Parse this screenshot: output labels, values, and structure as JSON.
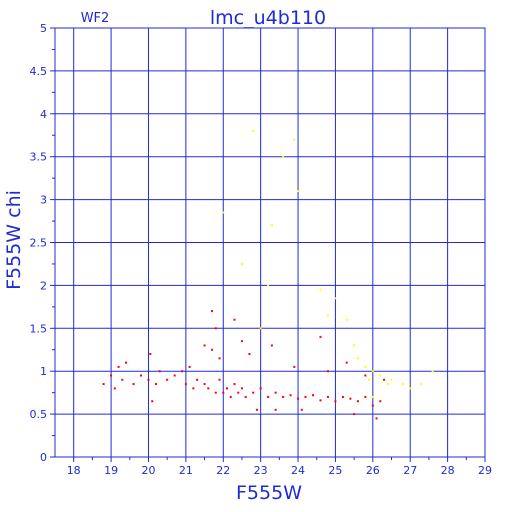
{
  "chart_data": {
    "type": "scatter",
    "title": "lmc_u4b110",
    "subtitle": "WF2",
    "xlabel": "F555W",
    "ylabel": "F555W  chi",
    "xlim": [
      17.5,
      29
    ],
    "ylim": [
      0,
      5
    ],
    "x_ticks": [
      "18",
      "19",
      "20",
      "21",
      "22",
      "23",
      "24",
      "25",
      "26",
      "27",
      "28",
      "29"
    ],
    "y_ticks": [
      "0",
      "0.5",
      "1",
      "1.5",
      "2",
      "2.5",
      "3",
      "3.5",
      "4",
      "4.5",
      "5"
    ],
    "grid": true,
    "colors": {
      "axis": "#1f2bd6",
      "main_points": "#ff0000",
      "flagged_points": "#ffff00"
    },
    "series": [
      {
        "color": "red",
        "x": [
          18.8,
          19.0,
          19.1,
          19.2,
          19.3,
          19.4,
          19.6,
          19.8,
          20.0,
          20.05,
          20.1,
          20.2,
          20.3,
          20.5,
          20.7,
          20.9,
          21.0,
          21.1,
          21.2,
          21.3,
          21.5,
          21.6,
          21.7,
          21.8,
          21.9,
          22.0,
          22.1,
          22.2,
          22.3,
          22.4,
          22.5,
          22.6,
          22.8,
          23.0,
          23.2,
          23.4,
          23.6,
          23.8,
          24.0,
          24.2,
          24.4,
          24.6,
          24.8,
          25.0,
          25.2,
          25.4,
          25.6,
          25.8,
          26.0,
          26.2,
          21.7,
          21.5,
          21.8,
          21.9,
          22.3,
          22.5,
          23.0,
          23.3,
          24.6,
          25.3,
          22.9,
          23.4,
          24.1,
          25.5,
          26.1,
          22.7,
          23.9,
          24.8,
          25.8,
          26.3
        ],
        "y": [
          0.85,
          0.95,
          0.8,
          1.05,
          0.9,
          1.1,
          0.85,
          0.95,
          0.9,
          1.2,
          0.65,
          0.85,
          1.0,
          0.9,
          0.95,
          1.0,
          0.85,
          1.05,
          0.8,
          0.9,
          0.85,
          0.8,
          1.25,
          0.75,
          0.9,
          0.75,
          0.8,
          0.7,
          0.85,
          0.75,
          0.8,
          0.7,
          0.75,
          0.8,
          0.7,
          0.75,
          0.7,
          0.72,
          0.68,
          0.7,
          0.72,
          0.66,
          0.7,
          0.65,
          0.7,
          0.68,
          0.65,
          0.7,
          0.6,
          0.65,
          1.7,
          1.3,
          1.5,
          1.15,
          1.6,
          1.35,
          1.5,
          1.3,
          1.4,
          1.1,
          0.55,
          0.55,
          0.55,
          0.5,
          0.45,
          1.2,
          1.05,
          1.0,
          0.95,
          0.9
        ]
      },
      {
        "color": "yellow",
        "x": [
          22.0,
          22.8,
          23.0,
          23.3,
          23.6,
          23.9,
          24.0,
          23.2,
          22.5,
          24.6,
          25.0,
          25.3,
          25.6,
          25.8,
          26.0,
          26.2,
          26.5,
          26.8,
          27.0,
          27.3,
          27.6,
          25.5,
          26.0,
          24.8,
          25.9,
          26.4
        ],
        "y": [
          2.85,
          3.8,
          1.5,
          2.7,
          3.5,
          3.7,
          3.1,
          2.0,
          2.25,
          1.95,
          1.85,
          1.6,
          1.15,
          1.05,
          1.0,
          0.95,
          0.9,
          0.85,
          0.8,
          0.85,
          1.0,
          1.3,
          0.7,
          1.65,
          0.9,
          0.85
        ]
      }
    ]
  }
}
